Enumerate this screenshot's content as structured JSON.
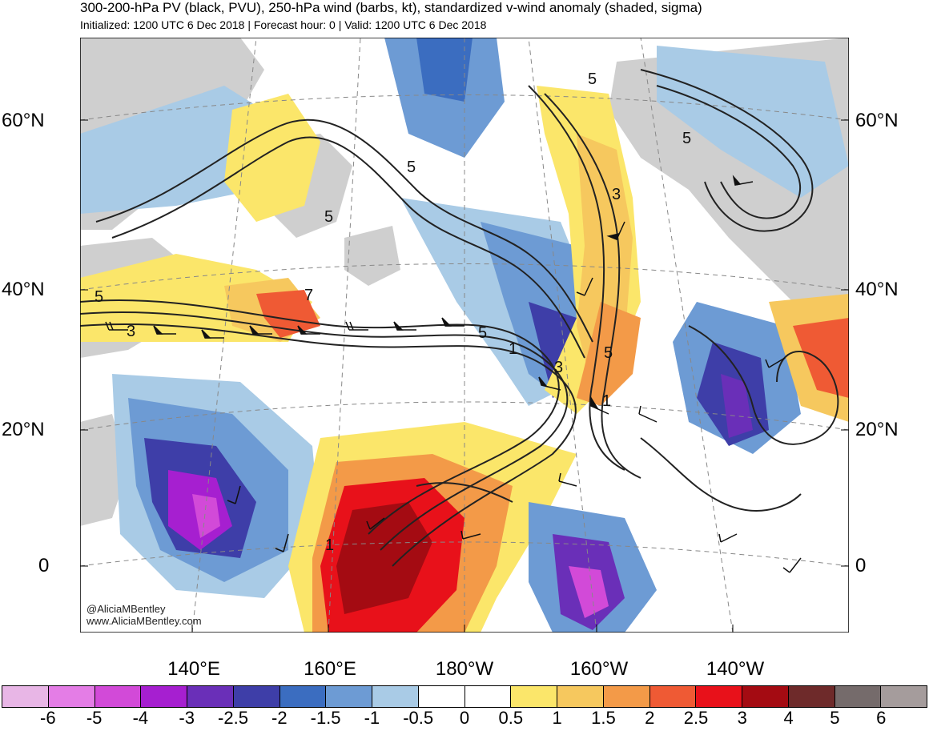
{
  "header": {
    "title": "300-200-hPa PV (black, PVU), 250-hPa wind (barbs, kt), standardized v-wind anomaly (shaded, sigma)",
    "subtitle": "Initialized: 1200 UTC 6 Dec 2018 | Forecast hour: 0 | Valid: 1200 UTC 6 Dec 2018"
  },
  "map": {
    "lat_labels": [
      "60°N",
      "40°N",
      "20°N",
      "0"
    ],
    "lon_labels": [
      "140°E",
      "160°E",
      "180°W",
      "160°W",
      "140°W"
    ],
    "contour_labels": [
      "5",
      "5",
      "5",
      "5",
      "3",
      "7",
      "5",
      "1",
      "3",
      "5",
      "1",
      "3",
      "1",
      "5"
    ],
    "credits": [
      "@AliciaMBentley",
      "www.AliciaMBentley.com"
    ]
  },
  "colorbar": {
    "labels": [
      "-6",
      "-5",
      "-4",
      "-3",
      "-2.5",
      "-2",
      "-1.5",
      "-1",
      "-0.5",
      "0",
      "0.5",
      "1",
      "1.5",
      "2",
      "2.5",
      "3",
      "4",
      "5",
      "6"
    ],
    "colors": [
      "#e8b6e6",
      "#e47de6",
      "#d24ad8",
      "#a61fd0",
      "#6a2fb8",
      "#3e3ea8",
      "#3b6dc0",
      "#6d9bd4",
      "#a9cbe6",
      "#ffffff",
      "#ffffff",
      "#fbe66a",
      "#f6c85e",
      "#f39a48",
      "#ef5a34",
      "#e8111a",
      "#a40b12",
      "#6e2a2a",
      "#756b6b",
      "#a59c9c"
    ]
  }
}
